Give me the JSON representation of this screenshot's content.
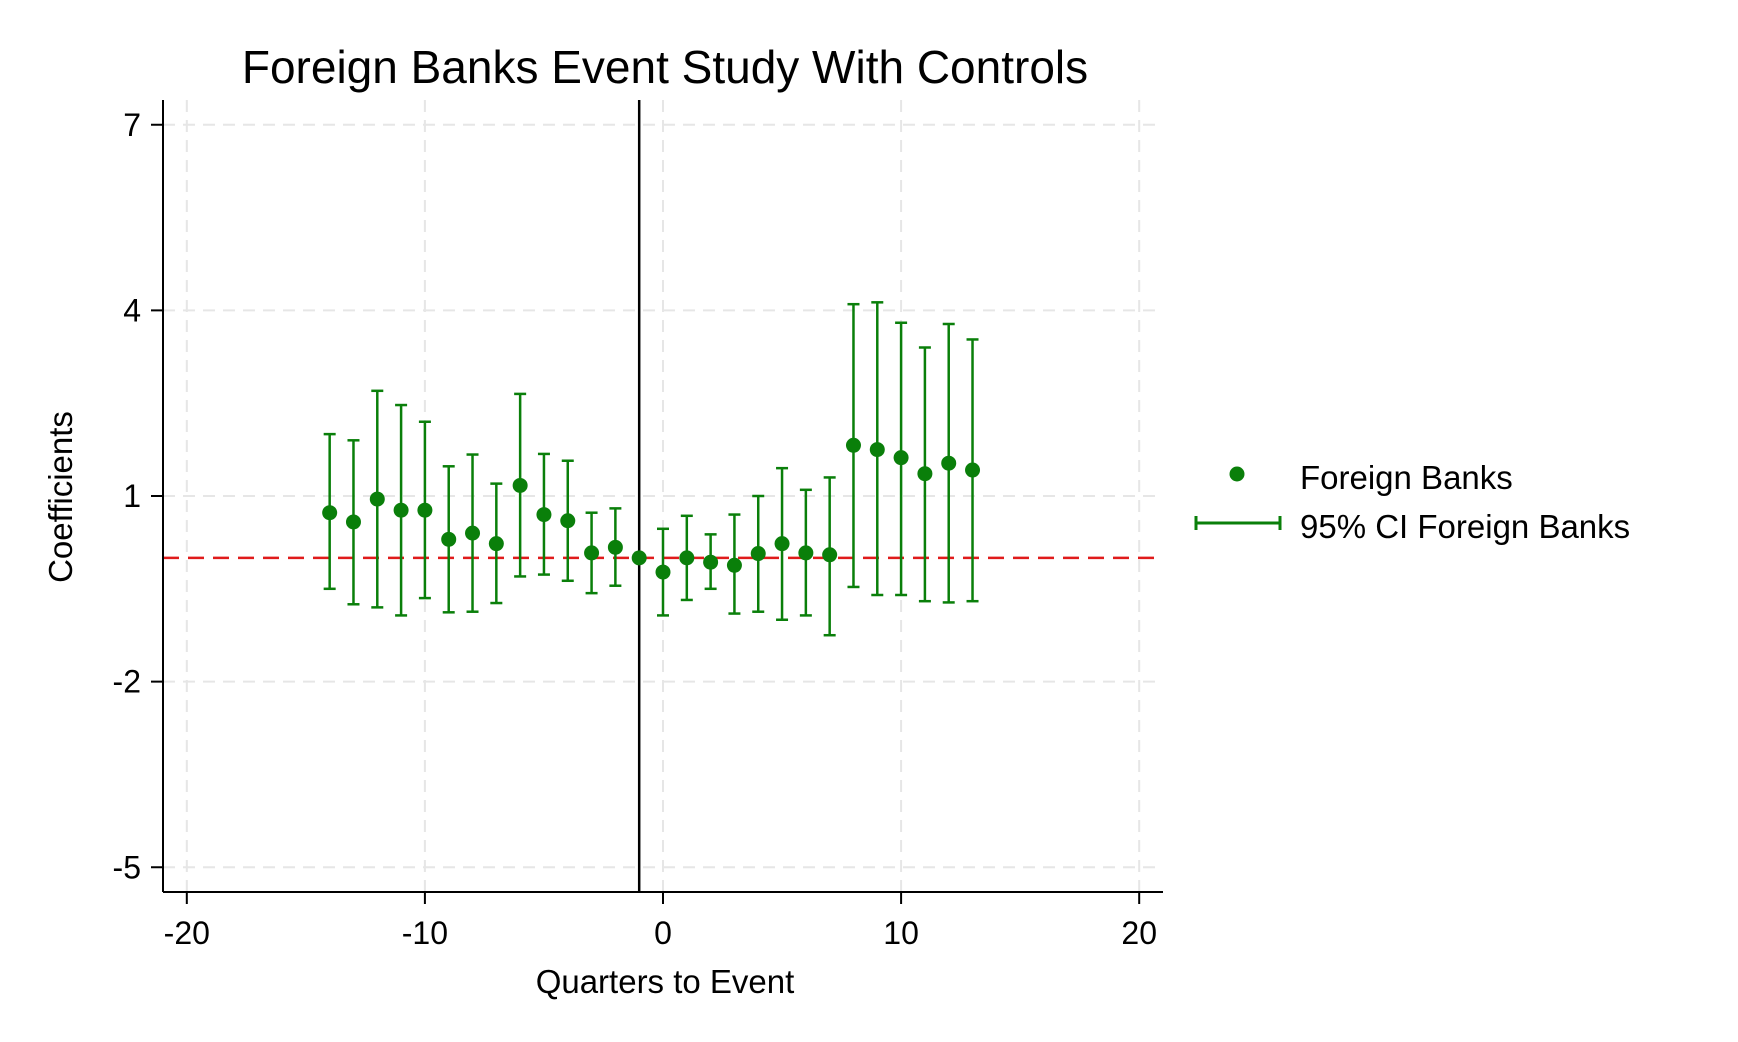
{
  "chart_data": {
    "type": "scatter",
    "title": "Foreign Banks Event Study With Controls",
    "xlabel": "Quarters to Event",
    "ylabel": "Coefficients",
    "xlim": [
      -21,
      21
    ],
    "ylim": [
      -5.4,
      7.4
    ],
    "xticks": [
      -20,
      -10,
      0,
      10,
      20
    ],
    "yticks": [
      -5,
      -2,
      1,
      4,
      7
    ],
    "grid": true,
    "event_line_x": -1,
    "reference_line_y": 0,
    "legend_position": "right",
    "colors": {
      "series": "#0a7f0a",
      "reference": "#e01b1b",
      "event": "#000000",
      "grid": "#e6e6e6"
    },
    "series": [
      {
        "name": "Foreign Banks",
        "ci_name": "95% CI Foreign Banks",
        "points": [
          {
            "x": -14,
            "y": 0.73,
            "lo": -0.5,
            "hi": 2.0
          },
          {
            "x": -13,
            "y": 0.58,
            "lo": -0.75,
            "hi": 1.9
          },
          {
            "x": -12,
            "y": 0.95,
            "lo": -0.8,
            "hi": 2.7
          },
          {
            "x": -11,
            "y": 0.77,
            "lo": -0.93,
            "hi": 2.47
          },
          {
            "x": -10,
            "y": 0.77,
            "lo": -0.65,
            "hi": 2.2
          },
          {
            "x": -9,
            "y": 0.3,
            "lo": -0.88,
            "hi": 1.48
          },
          {
            "x": -8,
            "y": 0.4,
            "lo": -0.87,
            "hi": 1.67
          },
          {
            "x": -7,
            "y": 0.23,
            "lo": -0.73,
            "hi": 1.2
          },
          {
            "x": -6,
            "y": 1.17,
            "lo": -0.3,
            "hi": 2.65
          },
          {
            "x": -5,
            "y": 0.7,
            "lo": -0.27,
            "hi": 1.68
          },
          {
            "x": -4,
            "y": 0.6,
            "lo": -0.37,
            "hi": 1.57
          },
          {
            "x": -3,
            "y": 0.08,
            "lo": -0.57,
            "hi": 0.73
          },
          {
            "x": -2,
            "y": 0.17,
            "lo": -0.45,
            "hi": 0.8
          },
          {
            "x": -1,
            "y": 0.0,
            "lo": 0.0,
            "hi": 0.0
          },
          {
            "x": 0,
            "y": -0.23,
            "lo": -0.93,
            "hi": 0.47
          },
          {
            "x": 1,
            "y": 0.0,
            "lo": -0.68,
            "hi": 0.68
          },
          {
            "x": 2,
            "y": -0.07,
            "lo": -0.5,
            "hi": 0.38
          },
          {
            "x": 3,
            "y": -0.12,
            "lo": -0.9,
            "hi": 0.7
          },
          {
            "x": 4,
            "y": 0.07,
            "lo": -0.87,
            "hi": 1.0
          },
          {
            "x": 5,
            "y": 0.23,
            "lo": -1.0,
            "hi": 1.45
          },
          {
            "x": 6,
            "y": 0.08,
            "lo": -0.93,
            "hi": 1.1
          },
          {
            "x": 7,
            "y": 0.05,
            "lo": -1.25,
            "hi": 1.3
          },
          {
            "x": 8,
            "y": 1.82,
            "lo": -0.47,
            "hi": 4.1
          },
          {
            "x": 9,
            "y": 1.75,
            "lo": -0.6,
            "hi": 4.13
          },
          {
            "x": 10,
            "y": 1.62,
            "lo": -0.6,
            "hi": 3.8
          },
          {
            "x": 11,
            "y": 1.36,
            "lo": -0.7,
            "hi": 3.4
          },
          {
            "x": 12,
            "y": 1.53,
            "lo": -0.72,
            "hi": 3.78
          },
          {
            "x": 13,
            "y": 1.42,
            "lo": -0.7,
            "hi": 3.53
          }
        ]
      }
    ]
  }
}
